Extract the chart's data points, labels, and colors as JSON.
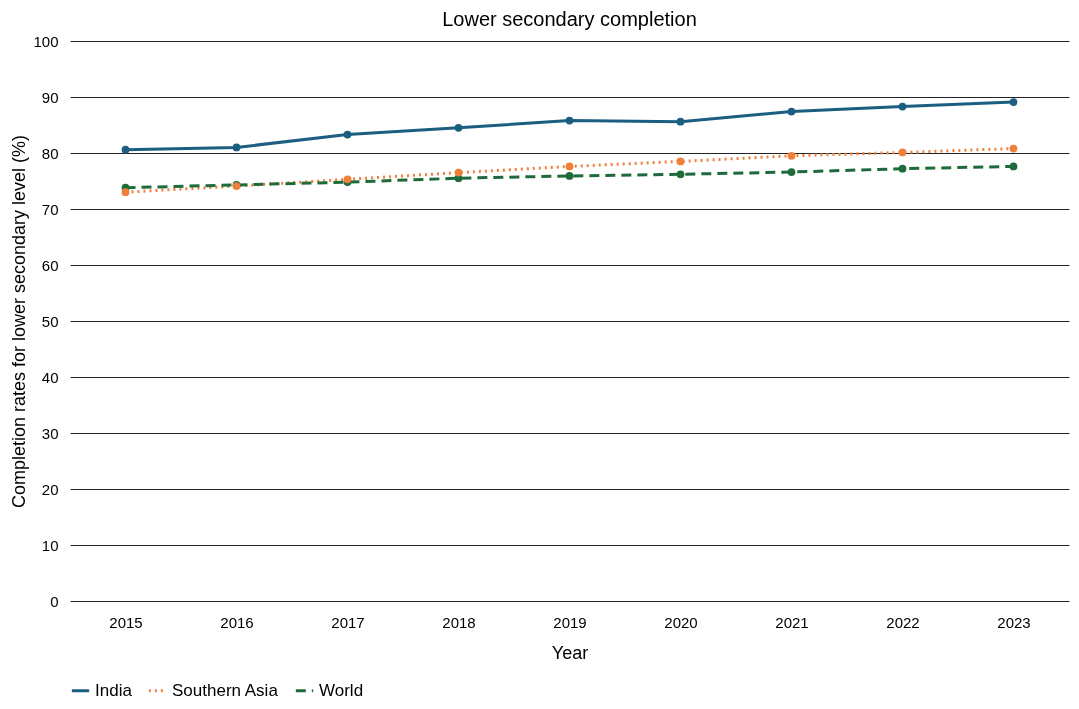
{
  "chart_data": {
    "type": "line",
    "title": "Lower secondary completion",
    "xlabel": "Year",
    "ylabel": "Completion rates for lower secondary level (%)",
    "categories": [
      "2015",
      "2016",
      "2017",
      "2018",
      "2019",
      "2020",
      "2021",
      "2022",
      "2023"
    ],
    "series": [
      {
        "name": "India",
        "color": "#1b5e82",
        "line_style": "solid",
        "values": [
          80.6,
          81.0,
          83.3,
          84.5,
          85.8,
          85.6,
          87.4,
          88.3,
          89.1
        ]
      },
      {
        "name": "Southern Asia",
        "color": "#f07f3c",
        "line_style": "dotted",
        "values": [
          73.0,
          74.1,
          75.3,
          76.5,
          77.6,
          78.5,
          79.5,
          80.1,
          80.8
        ]
      },
      {
        "name": "World",
        "color": "#1e6b3a",
        "line_style": "dashed",
        "values": [
          73.8,
          74.3,
          74.8,
          75.5,
          75.9,
          76.2,
          76.6,
          77.2,
          77.6
        ]
      }
    ],
    "ylim": [
      0,
      100
    ],
    "yticks": [
      0,
      10,
      20,
      30,
      40,
      50,
      60,
      70,
      80,
      90,
      100
    ],
    "grid": "y",
    "legend": "bottom",
    "marker": "circle"
  }
}
